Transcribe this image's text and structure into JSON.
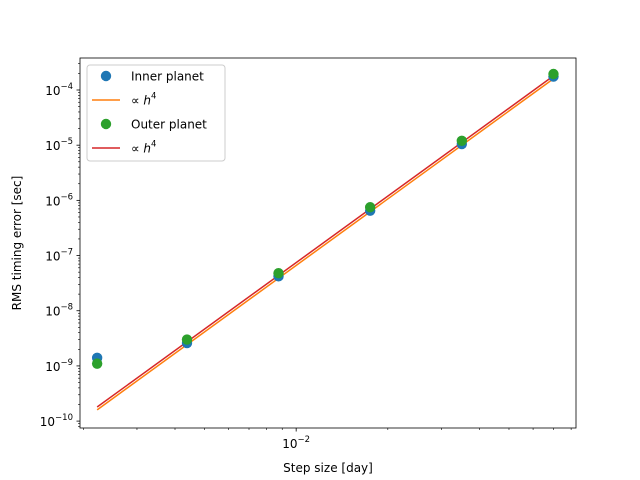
{
  "chart_data": {
    "type": "scatter",
    "title": "",
    "xlabel": "Step size [day]",
    "ylabel": "RMS timing error [sec]",
    "xscale": "log",
    "yscale": "log",
    "xlim": [
      0.00195,
      0.083
    ],
    "ylim": [
      7.5e-11,
      0.00038
    ],
    "x_tick_labels": [
      {
        "value": 0.01,
        "base": "10",
        "exp": "−2"
      }
    ],
    "y_tick_labels": [
      {
        "value": 1e-10,
        "base": "10",
        "exp": "−10"
      },
      {
        "value": 1e-09,
        "base": "10",
        "exp": "−9"
      },
      {
        "value": 1e-08,
        "base": "10",
        "exp": "−8"
      },
      {
        "value": 1e-07,
        "base": "10",
        "exp": "−7"
      },
      {
        "value": 1e-06,
        "base": "10",
        "exp": "−6"
      },
      {
        "value": 1e-05,
        "base": "10",
        "exp": "−5"
      },
      {
        "value": 0.0001,
        "base": "10",
        "exp": "−4"
      }
    ],
    "legend_position": "top-left",
    "grid": false,
    "series": [
      {
        "name": "Inner planet",
        "kind": "markers",
        "color": "#1f77b4",
        "x": [
          0.00222,
          0.00438,
          0.00875,
          0.0175,
          0.035,
          0.07
        ],
        "y": [
          1.4e-09,
          2.6e-09,
          4.2e-08,
          6.5e-07,
          1.05e-05,
          0.000175
        ]
      },
      {
        "name": "∝ h⁴",
        "kind": "line",
        "color": "#ff7f0e",
        "x": [
          0.00222,
          0.07
        ],
        "y": [
          1.6e-10,
          0.00016
        ]
      },
      {
        "name": "Outer planet",
        "kind": "markers",
        "color": "#2ca02c",
        "x": [
          0.00222,
          0.00438,
          0.00875,
          0.0175,
          0.035,
          0.07
        ],
        "y": [
          1.1e-09,
          3e-09,
          4.8e-08,
          7.5e-07,
          1.2e-05,
          0.000195
        ]
      },
      {
        "name": "∝ h⁴",
        "kind": "line",
        "color": "#d62728",
        "x": [
          0.00222,
          0.07
        ],
        "y": [
          1.8e-10,
          0.00018
        ]
      }
    ],
    "legend_entries": [
      {
        "label": "Inner planet",
        "kind": "marker",
        "color": "#1f77b4"
      },
      {
        "label": "∝ h",
        "sup": "4",
        "kind": "line",
        "color": "#ff7f0e"
      },
      {
        "label": "Outer planet",
        "kind": "marker",
        "color": "#2ca02c"
      },
      {
        "label": "∝ h",
        "sup": "4",
        "kind": "line",
        "color": "#d62728"
      }
    ]
  }
}
